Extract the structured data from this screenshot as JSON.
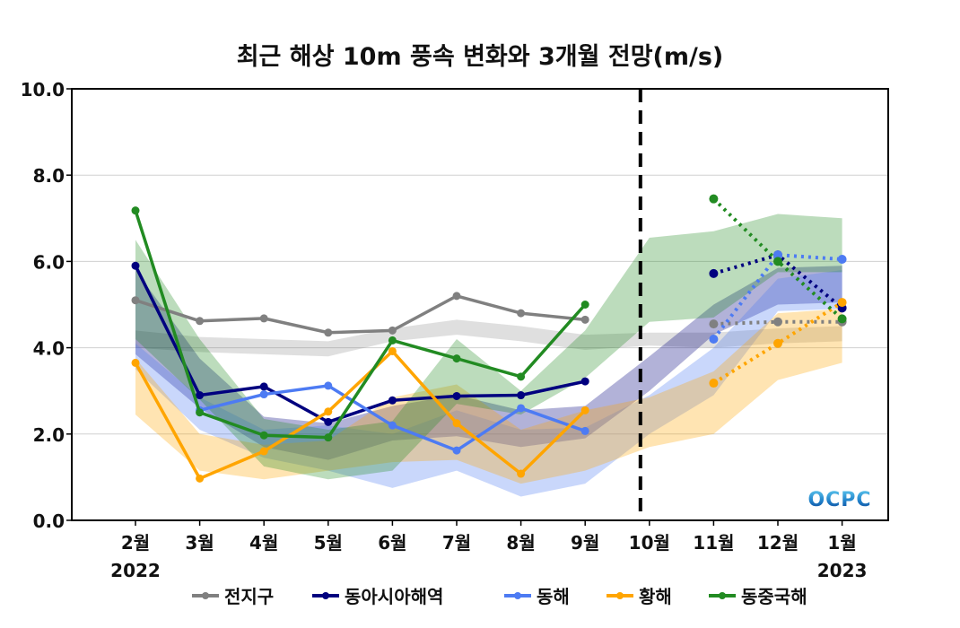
{
  "chart_data": {
    "type": "line",
    "title": "최근 해상 10m 풍속 변화와 3개월 전망(m/s)",
    "xlabel": "",
    "ylabel": "",
    "ylim": [
      0,
      10
    ],
    "yticks": [
      "0.0",
      "2.0",
      "4.0",
      "6.0",
      "8.0",
      "10.0"
    ],
    "ytick_values": [
      0,
      2,
      4,
      6,
      8,
      10
    ],
    "grid": true,
    "categories": [
      "2월",
      "3월",
      "4월",
      "5월",
      "6월",
      "7월",
      "8월",
      "9월",
      "10월",
      "11월",
      "12월",
      "1월"
    ],
    "year_labels": [
      {
        "index": 0,
        "label": "2022"
      },
      {
        "index": 11,
        "label": "2023"
      }
    ],
    "forecast_divider_index": 8,
    "legend_position": "bottom",
    "watermark": "OCPC",
    "series": [
      {
        "name": "전지구",
        "color": "#808080",
        "observed": [
          5.1,
          4.62,
          4.68,
          4.35,
          4.4,
          5.2,
          4.8,
          4.65,
          null,
          null,
          null,
          null
        ],
        "forecast": [
          null,
          null,
          null,
          null,
          null,
          null,
          null,
          null,
          null,
          4.55,
          4.6,
          4.6
        ],
        "band_lower": [
          4.0,
          3.9,
          3.85,
          3.8,
          4.15,
          4.3,
          4.15,
          3.95,
          4.05,
          4.0,
          4.1,
          4.15
        ],
        "band_upper": [
          4.4,
          4.25,
          4.2,
          4.15,
          4.45,
          4.65,
          4.5,
          4.3,
          4.35,
          4.35,
          4.45,
          4.5
        ]
      },
      {
        "name": "동아시아해역",
        "color": "#00007f",
        "observed": [
          5.9,
          2.9,
          3.1,
          2.28,
          2.78,
          2.88,
          2.9,
          3.22,
          null,
          null,
          null,
          null
        ],
        "forecast": [
          null,
          null,
          null,
          null,
          null,
          null,
          null,
          null,
          null,
          5.72,
          6.15,
          4.92
        ],
        "band_lower": [
          3.85,
          2.6,
          1.7,
          1.4,
          1.85,
          1.95,
          1.7,
          1.9,
          3.0,
          4.3,
          5.0,
          5.05
        ],
        "band_upper": [
          5.8,
          3.75,
          2.4,
          2.25,
          2.65,
          2.9,
          2.55,
          2.65,
          3.8,
          5.0,
          5.85,
          5.9
        ]
      },
      {
        "name": "동해",
        "color": "#4d7bf3",
        "observed": [
          null,
          2.55,
          2.92,
          3.12,
          2.2,
          1.62,
          2.6,
          2.07,
          null,
          null,
          null,
          null
        ],
        "forecast": [
          null,
          null,
          null,
          null,
          null,
          null,
          null,
          null,
          null,
          4.2,
          6.15,
          6.05
        ],
        "band_lower": [
          3.5,
          2.1,
          1.45,
          1.15,
          0.75,
          1.15,
          0.55,
          0.85,
          2.0,
          2.9,
          4.85,
          4.9
        ],
        "band_upper": [
          4.1,
          2.85,
          2.1,
          2.2,
          2.0,
          2.55,
          2.1,
          2.15,
          2.9,
          4.0,
          5.6,
          5.8
        ]
      },
      {
        "name": "황해",
        "color": "#ffa500",
        "observed": [
          3.65,
          0.97,
          1.6,
          2.52,
          3.92,
          2.25,
          1.08,
          2.55,
          null,
          null,
          null,
          null
        ],
        "forecast": [
          null,
          null,
          null,
          null,
          null,
          null,
          null,
          null,
          null,
          3.18,
          4.1,
          5.05
        ],
        "band_lower": [
          2.45,
          1.15,
          0.95,
          1.15,
          1.35,
          1.4,
          0.85,
          1.15,
          1.7,
          2.0,
          3.25,
          3.65
        ],
        "band_upper": [
          3.75,
          2.0,
          1.75,
          1.85,
          2.85,
          3.15,
          2.1,
          2.55,
          2.85,
          3.45,
          4.8,
          4.9
        ]
      },
      {
        "name": "동중국해",
        "color": "#228b22",
        "observed": [
          7.18,
          2.5,
          1.97,
          1.92,
          4.17,
          3.75,
          3.33,
          5.0,
          null,
          null,
          null,
          null
        ],
        "forecast": [
          null,
          null,
          null,
          null,
          null,
          null,
          null,
          null,
          null,
          7.45,
          6.0,
          4.67
        ],
        "band_lower": [
          4.2,
          2.8,
          1.25,
          0.95,
          1.15,
          2.7,
          2.45,
          3.3,
          4.6,
          4.7,
          5.75,
          5.75
        ],
        "band_upper": [
          6.5,
          4.2,
          2.35,
          2.1,
          2.3,
          4.2,
          3.0,
          4.4,
          6.55,
          6.7,
          7.1,
          7.0
        ]
      }
    ]
  }
}
